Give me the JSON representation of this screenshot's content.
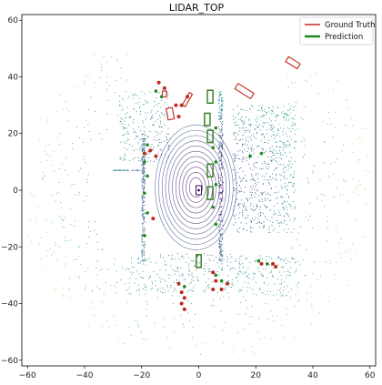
{
  "chart_data": {
    "type": "scatter",
    "title": "LIDAR_TOP",
    "xlim": [
      -62,
      62
    ],
    "ylim": [
      -62,
      62
    ],
    "x_ticks": [
      -60,
      -40,
      -20,
      0,
      20,
      40,
      60
    ],
    "y_ticks": [
      -60,
      -40,
      -20,
      0,
      20,
      40,
      60
    ],
    "x_tick_labels": [
      "−60",
      "−40",
      "−20",
      "0",
      "20",
      "40",
      "60"
    ],
    "y_tick_labels": [
      "−60",
      "−40",
      "−20",
      "0",
      "20",
      "40",
      "60"
    ],
    "grid": false,
    "legend_placement": "top-right",
    "legend": [
      {
        "label": "Ground Truth",
        "color": "#c0281e"
      },
      {
        "label": "Prediction",
        "color": "#1e8a1e"
      }
    ],
    "ego_position": [
      0,
      0
    ],
    "point_cloud_colormap": "viridis (by distance)",
    "ground_truth_boxes": [
      {
        "cx": 4,
        "cy": 33,
        "w": 2.0,
        "l": 4.6,
        "yaw": 0
      },
      {
        "cx": 3,
        "cy": 25,
        "w": 2.0,
        "l": 4.4,
        "yaw": 0
      },
      {
        "cx": 4,
        "cy": 19,
        "w": 2.0,
        "l": 4.4,
        "yaw": 0
      },
      {
        "cx": 4,
        "cy": 7,
        "w": 2.0,
        "l": 4.5,
        "yaw": 0
      },
      {
        "cx": 4,
        "cy": -1,
        "w": 2.0,
        "l": 4.5,
        "yaw": 0
      },
      {
        "cx": 0,
        "cy": -25,
        "w": 1.8,
        "l": 4.6,
        "yaw": 0
      },
      {
        "cx": 16,
        "cy": 35,
        "w": 2.2,
        "l": 6.5,
        "yaw": 58
      },
      {
        "cx": 33,
        "cy": 45,
        "w": 2.0,
        "l": 4.8,
        "yaw": 58
      },
      {
        "cx": -10,
        "cy": 27,
        "w": 2.2,
        "l": 4.0,
        "yaw": 10
      },
      {
        "cx": -12,
        "cy": 34,
        "w": 1.5,
        "l": 2.0,
        "yaw": 0
      },
      {
        "cx": -4,
        "cy": 32,
        "w": 1.2,
        "l": 5.0,
        "yaw": -30
      }
    ],
    "prediction_boxes": [
      {
        "cx": 4,
        "cy": 33,
        "w": 1.9,
        "l": 4.4,
        "yaw": 0
      },
      {
        "cx": 3,
        "cy": 25,
        "w": 1.9,
        "l": 4.2,
        "yaw": 0
      },
      {
        "cx": 4,
        "cy": 19,
        "w": 1.9,
        "l": 4.2,
        "yaw": 0
      },
      {
        "cx": 4,
        "cy": 7,
        "w": 1.9,
        "l": 4.4,
        "yaw": 0
      },
      {
        "cx": 4,
        "cy": -1,
        "w": 1.9,
        "l": 4.4,
        "yaw": 0
      },
      {
        "cx": 0,
        "cy": -25,
        "w": 1.7,
        "l": 4.4,
        "yaw": 0
      }
    ],
    "ground_truth_points": [
      [
        -14,
        38
      ],
      [
        -12,
        36
      ],
      [
        -8,
        30
      ],
      [
        -7,
        26
      ],
      [
        -17,
        14
      ],
      [
        -15,
        12
      ],
      [
        -19,
        13
      ],
      [
        -16,
        -10
      ],
      [
        5,
        -29
      ],
      [
        6,
        -32
      ],
      [
        5,
        -35
      ],
      [
        -7,
        -33
      ],
      [
        -6,
        -36
      ],
      [
        -5,
        -38
      ],
      [
        -6,
        -40
      ],
      [
        -5,
        -42
      ],
      [
        10,
        -33
      ],
      [
        8,
        -35
      ],
      [
        22,
        -26
      ],
      [
        26,
        -26
      ],
      [
        27,
        -27
      ],
      [
        -4,
        33
      ],
      [
        -6,
        30
      ]
    ],
    "prediction_points": [
      [
        -15,
        35
      ],
      [
        -13,
        33
      ],
      [
        -18,
        16
      ],
      [
        -19,
        10
      ],
      [
        -18,
        5
      ],
      [
        -19,
        -1
      ],
      [
        -18,
        -8
      ],
      [
        -19,
        -16
      ],
      [
        6,
        22
      ],
      [
        5,
        15
      ],
      [
        6,
        10
      ],
      [
        6,
        2
      ],
      [
        5,
        -6
      ],
      [
        6,
        -12
      ],
      [
        21,
        -25
      ],
      [
        24,
        -26
      ],
      [
        8,
        -32
      ],
      [
        6,
        -30
      ],
      [
        -5,
        -34
      ],
      [
        22,
        13
      ],
      [
        18,
        12
      ]
    ]
  }
}
